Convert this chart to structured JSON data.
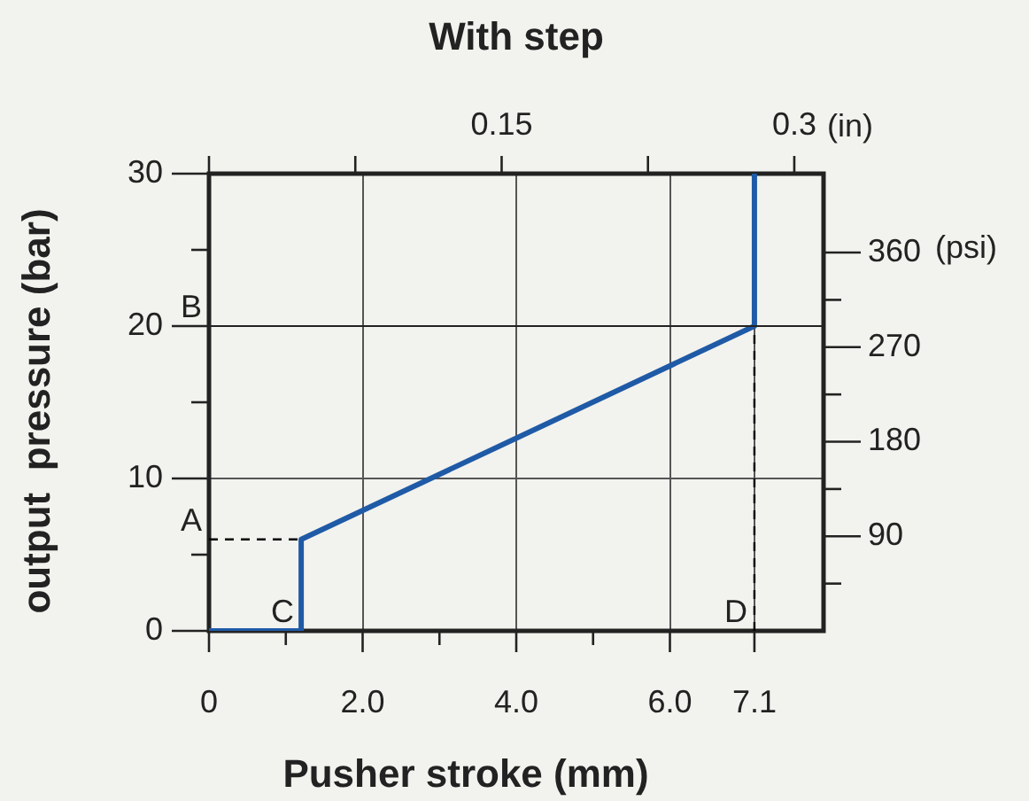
{
  "chart_data": {
    "type": "line",
    "title": "With step",
    "xlabel": "Pusher stroke (mm)",
    "ylabel": "output  pressure (bar)",
    "x2label": "(in)",
    "y2label": "(psi)",
    "series": [
      {
        "color": "#1f5aa6",
        "x": [
          0,
          1.2,
          1.2,
          7.1,
          7.1
        ],
        "values": [
          0,
          0,
          6,
          20,
          30
        ]
      },
      {
        "color": "#000000",
        "line_style": "dashed",
        "x": [
          0,
          1.2
        ],
        "values": [
          6,
          6
        ]
      },
      {
        "color": "#000000",
        "line_style": "dashed",
        "x": [
          7.1,
          7.1
        ],
        "values": [
          0,
          20
        ]
      }
    ],
    "xlim": [
      0,
      8
    ],
    "xticks": [
      0,
      {
        "value": 1,
        "label": null
      },
      {
        "value": 2,
        "label": "2.0"
      },
      {
        "value": 3,
        "label": null
      },
      {
        "value": 4,
        "label": "4.0"
      },
      {
        "value": 5,
        "label": null
      },
      {
        "value": 6,
        "label": "6.0"
      },
      7.1
    ],
    "ylim": [
      0,
      30
    ],
    "yticks": [
      0,
      {
        "value": 5,
        "label": null
      },
      10,
      {
        "value": 15,
        "label": null
      },
      20,
      {
        "value": 25,
        "label": null
      },
      30
    ],
    "x2lim": [
      0,
      0.315
    ],
    "x2ticks": [
      {
        "value": 0,
        "label": null
      },
      {
        "value": 0.075,
        "label": null
      },
      0.15,
      {
        "value": 0.225,
        "label": null
      },
      0.3
    ],
    "y2lim": [
      0,
      435.1
    ],
    "y2ticks": [
      {
        "value": 45,
        "label": null
      },
      90,
      {
        "value": 135,
        "label": null
      },
      180,
      {
        "value": 225,
        "label": null
      },
      270,
      {
        "value": 315,
        "label": null
      },
      360
    ],
    "annotations": [
      {
        "text": "A",
        "x": 0,
        "y": 6
      },
      {
        "text": "C",
        "x": 1.2,
        "y": 0
      },
      {
        "text": "D",
        "x": 7.1,
        "y": 0
      }
    ],
    "ref_lines": [
      {
        "axis": "y",
        "value": 20,
        "label": "B",
        "color": "#222222"
      }
    ],
    "grid": true,
    "legend": false,
    "marker": "none"
  }
}
